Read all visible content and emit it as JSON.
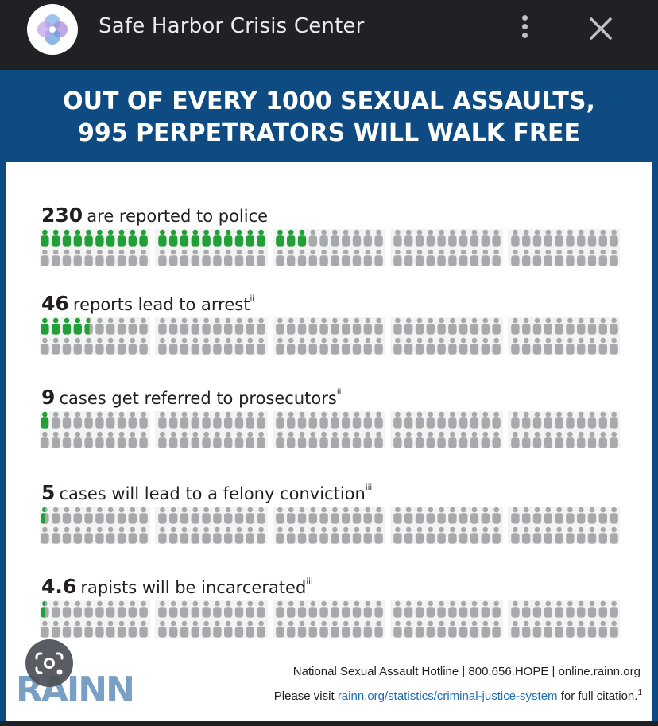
{
  "app": {
    "title": "Safe Harbor Crisis Center",
    "logo_icon": "flower-logo-icon",
    "menu_icon": "more-vert-icon",
    "close_icon": "close-icon"
  },
  "infographic": {
    "headline_line1": "OUT OF EVERY 1000 SEXUAL ASSAULTS,",
    "headline_line2": "995 PERPETRATORS WILL WALK FREE",
    "colors": {
      "band": "#0e4b82",
      "highlight": "#21a038",
      "base": "#a7a9ac"
    },
    "stats": [
      {
        "number": "230",
        "text": "are reported to police",
        "note": "i",
        "highlighted_figures": 23,
        "total_figures": 100
      },
      {
        "number": "46",
        "text": "reports lead to arrest",
        "note": "ii",
        "highlighted_figures": 4.6,
        "total_figures": 100
      },
      {
        "number": "9",
        "text": "cases get referred to prosecutors",
        "note": "ii",
        "highlighted_figures": 0.9,
        "total_figures": 100
      },
      {
        "number": "5",
        "text": "cases will lead to a felony conviction",
        "note": "iii",
        "highlighted_figures": 0.5,
        "total_figures": 100
      },
      {
        "number": "4.6",
        "text": "rapists will be incarcerated",
        "note": "iii",
        "highlighted_figures": 0.46,
        "total_figures": 100
      }
    ],
    "footer": {
      "hotline": "National Sexual Assault Hotline | 800.656.HOPE | online.rainn.org",
      "visit_prefix": "Please visit",
      "visit_link": "rainn.org/statistics/criminal-justice-system",
      "visit_suffix": "for full citation.",
      "visit_sup": "1",
      "logo_text": "RAINN"
    }
  },
  "overlay": {
    "lens_icon": "google-lens-icon"
  }
}
